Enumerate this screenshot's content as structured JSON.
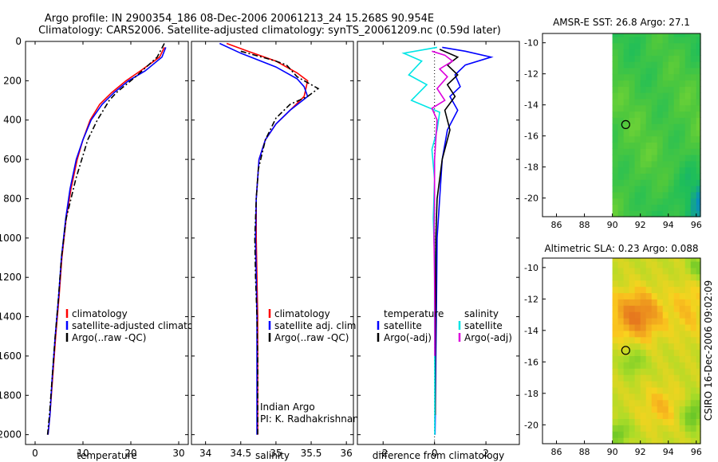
{
  "title_line1": "Argo profile: IN 2900354_186 08-Dec-2006 20061213_24 15.268S 90.954E",
  "title_line2": "Climatology: CARS2006. Satellite-adjusted climatology: synTS_20061209.nc (0.59d later)",
  "side_label": "CSIRO 16-Dec-2006 09:02:09",
  "chart_data": [
    {
      "id": "temperature",
      "type": "line",
      "xlabel": "temperature",
      "ylabel": "",
      "xlim": [
        -2,
        32
      ],
      "ylim": [
        2050,
        0
      ],
      "xticks": [
        0,
        10,
        20,
        30
      ],
      "yticks": [
        0,
        200,
        400,
        600,
        800,
        1000,
        1200,
        1400,
        1600,
        1800,
        2000
      ],
      "legend": [
        "climatology",
        "satellite-adjusted climatology",
        "Argo(..raw -QC)"
      ],
      "series": [
        {
          "name": "climatology",
          "color": "#ff0000",
          "dash": "",
          "points": [
            [
              27,
              30
            ],
            [
              26,
              80
            ],
            [
              22,
              150
            ],
            [
              19,
              200
            ],
            [
              16,
              260
            ],
            [
              13.5,
              320
            ],
            [
              11.5,
              400
            ],
            [
              10,
              500
            ],
            [
              8.8,
              600
            ],
            [
              7.5,
              750
            ],
            [
              6.5,
              900
            ],
            [
              5.6,
              1100
            ],
            [
              5,
              1300
            ],
            [
              4.3,
              1500
            ],
            [
              3.7,
              1700
            ],
            [
              3.1,
              1900
            ],
            [
              2.7,
              2000
            ]
          ]
        },
        {
          "name": "satellite-adjusted climatology",
          "color": "#0000ff",
          "dash": "",
          "points": [
            [
              27.3,
              30
            ],
            [
              26.5,
              80
            ],
            [
              23,
              150
            ],
            [
              19.5,
              200
            ],
            [
              16.5,
              260
            ],
            [
              14,
              320
            ],
            [
              11.7,
              400
            ],
            [
              10,
              500
            ],
            [
              8.6,
              600
            ],
            [
              7.3,
              750
            ],
            [
              6.4,
              900
            ],
            [
              5.5,
              1100
            ],
            [
              4.9,
              1300
            ],
            [
              4.2,
              1500
            ],
            [
              3.6,
              1700
            ],
            [
              3.1,
              1900
            ],
            [
              2.7,
              2000
            ]
          ]
        },
        {
          "name": "Argo(..raw -QC)",
          "color": "#000000",
          "dash": "7 3 2 3",
          "points": [
            [
              27,
              10
            ],
            [
              25.5,
              80
            ],
            [
              21,
              180
            ],
            [
              17,
              260
            ],
            [
              15.5,
              300
            ],
            [
              13,
              400
            ],
            [
              11,
              500
            ],
            [
              8.5,
              700
            ],
            [
              6.5,
              900
            ],
            [
              5.5,
              1100
            ],
            [
              4.9,
              1300
            ],
            [
              4.2,
              1500
            ],
            [
              3.6,
              1700
            ],
            [
              3,
              1900
            ],
            [
              2.6,
              2000
            ]
          ]
        }
      ]
    },
    {
      "id": "salinity",
      "type": "line",
      "xlabel": "salinity",
      "ylabel": "",
      "xlim": [
        33.8,
        36.1
      ],
      "ylim": [
        2050,
        0
      ],
      "xticks": [
        34,
        34.5,
        35,
        35.5,
        36
      ],
      "yticks": [
        0,
        200,
        400,
        600,
        800,
        1000,
        1200,
        1400,
        1600,
        1800,
        2000
      ],
      "legend": [
        "climatology",
        "satellite adj. clim.",
        "Argo(..raw -QC)"
      ],
      "annotation": [
        "Indian Argo",
        "PI: K. Radhakrishnan"
      ],
      "series": [
        {
          "name": "climatology",
          "color": "#ff0000",
          "dash": "",
          "points": [
            [
              34.3,
              10
            ],
            [
              34.6,
              50
            ],
            [
              35,
              100
            ],
            [
              35.3,
              160
            ],
            [
              35.45,
              200
            ],
            [
              35.4,
              280
            ],
            [
              35.2,
              350
            ],
            [
              35,
              420
            ],
            [
              34.85,
              500
            ],
            [
              34.76,
              600
            ],
            [
              34.72,
              800
            ],
            [
              34.72,
              1000
            ],
            [
              34.73,
              1200
            ],
            [
              34.74,
              1400
            ],
            [
              34.74,
              1600
            ],
            [
              34.74,
              1800
            ],
            [
              34.74,
              2000
            ]
          ]
        },
        {
          "name": "satellite adj. clim.",
          "color": "#0000ff",
          "dash": "",
          "points": [
            [
              34.2,
              10
            ],
            [
              34.5,
              60
            ],
            [
              35,
              130
            ],
            [
              35.3,
              190
            ],
            [
              35.4,
              230
            ],
            [
              35.45,
              280
            ],
            [
              35.2,
              350
            ],
            [
              35,
              420
            ],
            [
              34.85,
              500
            ],
            [
              34.76,
              600
            ],
            [
              34.72,
              800
            ],
            [
              34.71,
              1000
            ],
            [
              34.72,
              1200
            ],
            [
              34.73,
              1400
            ],
            [
              34.73,
              1600
            ],
            [
              34.73,
              1800
            ],
            [
              34.73,
              2000
            ]
          ]
        },
        {
          "name": "Argo(..raw -QC)",
          "color": "#000000",
          "dash": "7 3 2 3",
          "points": [
            [
              34.5,
              50
            ],
            [
              34.8,
              80
            ],
            [
              35,
              100
            ],
            [
              35.15,
              120
            ],
            [
              35.3,
              180
            ],
            [
              35.6,
              240
            ],
            [
              35.45,
              280
            ],
            [
              35.2,
              320
            ],
            [
              35,
              390
            ],
            [
              34.85,
              500
            ],
            [
              34.75,
              650
            ],
            [
              34.72,
              800
            ],
            [
              34.7,
              1000
            ],
            [
              34.71,
              1200
            ],
            [
              34.73,
              1400
            ],
            [
              34.74,
              1600
            ],
            [
              34.74,
              1800
            ],
            [
              34.74,
              2000
            ]
          ]
        }
      ]
    },
    {
      "id": "difference",
      "type": "line",
      "xlabel": "difference from climatology",
      "ylabel": "",
      "xlim": [
        -3,
        3.3
      ],
      "ylim": [
        2050,
        0
      ],
      "xticks": [
        -2,
        0,
        2
      ],
      "yticks": [
        0,
        200,
        400,
        600,
        800,
        1000,
        1200,
        1400,
        1600,
        1800,
        2000
      ],
      "legend_temperature": [
        "temperature",
        "satellite",
        "Argo(-adj)"
      ],
      "legend_salinity": [
        "salinity",
        "satellite",
        "Argo(-adj)"
      ],
      "series": [
        {
          "name": "temperature satellite",
          "color": "#0000ff",
          "dash": "",
          "points": [
            [
              0.3,
              30
            ],
            [
              1.2,
              50
            ],
            [
              2.2,
              80
            ],
            [
              1.2,
              120
            ],
            [
              0.8,
              170
            ],
            [
              1,
              230
            ],
            [
              0.6,
              280
            ],
            [
              0.9,
              350
            ],
            [
              0.5,
              450
            ],
            [
              0.3,
              600
            ],
            [
              0.2,
              800
            ],
            [
              0.1,
              1000
            ],
            [
              0.08,
              1300
            ],
            [
              0.05,
              1600
            ],
            [
              0.03,
              1900
            ],
            [
              0.02,
              2000
            ]
          ]
        },
        {
          "name": "temperature Argo(-adj)",
          "color": "#000000",
          "dash": "",
          "points": [
            [
              0.2,
              40
            ],
            [
              0.9,
              80
            ],
            [
              0.5,
              120
            ],
            [
              0.9,
              170
            ],
            [
              0.5,
              220
            ],
            [
              0.8,
              280
            ],
            [
              0.4,
              350
            ],
            [
              0.6,
              450
            ],
            [
              0.3,
              600
            ],
            [
              0.1,
              800
            ],
            [
              0.05,
              1000
            ],
            [
              0.05,
              1300
            ],
            [
              0.03,
              1600
            ],
            [
              0.03,
              1900
            ]
          ]
        },
        {
          "name": "salinity satellite",
          "color": "#00e5e5",
          "dash": "",
          "points": [
            [
              0.1,
              30
            ],
            [
              -1.2,
              60
            ],
            [
              -0.5,
              100
            ],
            [
              -1,
              170
            ],
            [
              -0.3,
              220
            ],
            [
              -0.9,
              300
            ],
            [
              0.2,
              360
            ],
            [
              0.1,
              450
            ],
            [
              -0.1,
              550
            ],
            [
              0,
              700
            ],
            [
              -0.05,
              900
            ],
            [
              0,
              1100
            ],
            [
              0,
              1400
            ],
            [
              0.01,
              1700
            ],
            [
              0.01,
              2000
            ]
          ]
        },
        {
          "name": "salinity Argo(-adj)",
          "color": "#dd00dd",
          "dash": "",
          "points": [
            [
              -0.1,
              50
            ],
            [
              0.4,
              70
            ],
            [
              0.7,
              100
            ],
            [
              0.2,
              140
            ],
            [
              0.5,
              180
            ],
            [
              0.1,
              240
            ],
            [
              0.4,
              300
            ],
            [
              -0.1,
              340
            ],
            [
              0.1,
              400
            ],
            [
              0,
              600
            ],
            [
              0,
              800
            ],
            [
              -0.02,
              1000
            ],
            [
              0,
              1200
            ],
            [
              0.01,
              1400
            ],
            [
              0.01,
              1600
            ]
          ]
        }
      ]
    },
    {
      "id": "sst-map",
      "type": "heatmap",
      "title": "AMSR-E SST: 26.8 Argo: 27.1",
      "xlim": [
        85,
        96.3
      ],
      "ylim": [
        -21.2,
        -9.4
      ],
      "xticks": [
        86,
        88,
        90,
        92,
        94,
        96
      ],
      "yticks": [
        -10,
        -12,
        -14,
        -16,
        -18,
        -20
      ],
      "data_start_lon": 90,
      "marker": {
        "lon": 90.954,
        "lat": -15.268
      }
    },
    {
      "id": "sla-map",
      "type": "heatmap",
      "title": "Altimetric SLA: 0.23 Argo: 0.088",
      "xlim": [
        85,
        96.3
      ],
      "ylim": [
        -21.2,
        -9.4
      ],
      "xticks": [
        86,
        88,
        90,
        92,
        94,
        96
      ],
      "yticks": [
        -10,
        -12,
        -14,
        -16,
        -18,
        -20
      ],
      "data_start_lon": 90,
      "marker": {
        "lon": 90.954,
        "lat": -15.268
      }
    }
  ]
}
